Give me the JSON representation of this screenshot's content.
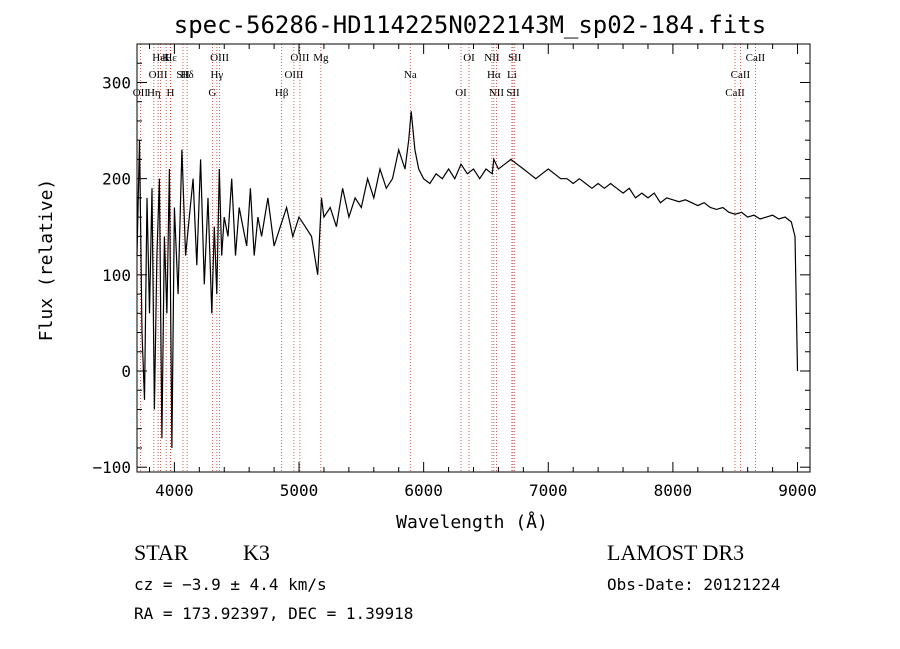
{
  "chart_data": {
    "type": "line",
    "title": "spec-56286-HD114225N022143M_sp02-184.fits",
    "xlabel": "Wavelength (Å)",
    "ylabel": "Flux (relative)",
    "xlim": [
      3700,
      9100
    ],
    "ylim": [
      -105,
      340
    ],
    "x_ticks": [
      4000,
      5000,
      6000,
      7000,
      8000,
      9000
    ],
    "x_tick_labels": [
      "4000",
      "5000",
      "6000",
      "7000",
      "8000",
      "9000"
    ],
    "y_ticks": [
      -100,
      0,
      100,
      200,
      300
    ],
    "y_tick_labels": [
      "−100",
      "0",
      "100",
      "200",
      "300"
    ],
    "grid": false,
    "series": [
      {
        "color": "#000000",
        "x": [
          3700,
          3720,
          3740,
          3760,
          3780,
          3800,
          3820,
          3840,
          3860,
          3880,
          3900,
          3920,
          3940,
          3960,
          3980,
          4000,
          4030,
          4060,
          4090,
          4120,
          4150,
          4180,
          4210,
          4240,
          4270,
          4300,
          4320,
          4340,
          4360,
          4380,
          4400,
          4430,
          4460,
          4490,
          4520,
          4550,
          4580,
          4610,
          4640,
          4670,
          4700,
          4750,
          4800,
          4850,
          4900,
          4950,
          5000,
          5050,
          5100,
          5150,
          5180,
          5200,
          5250,
          5300,
          5350,
          5400,
          5450,
          5500,
          5550,
          5600,
          5650,
          5700,
          5750,
          5800,
          5850,
          5880,
          5900,
          5930,
          5960,
          6000,
          6050,
          6100,
          6150,
          6200,
          6250,
          6300,
          6350,
          6400,
          6450,
          6500,
          6550,
          6563,
          6600,
          6650,
          6700,
          6750,
          6800,
          6850,
          6900,
          6950,
          7000,
          7050,
          7100,
          7150,
          7200,
          7250,
          7300,
          7350,
          7400,
          7450,
          7500,
          7550,
          7600,
          7650,
          7700,
          7750,
          7800,
          7850,
          7900,
          7950,
          8000,
          8050,
          8100,
          8150,
          8200,
          8250,
          8300,
          8350,
          8400,
          8450,
          8500,
          8550,
          8600,
          8650,
          8700,
          8750,
          8800,
          8850,
          8900,
          8950,
          8980,
          9000
        ],
        "y": [
          120,
          240,
          40,
          -30,
          180,
          60,
          190,
          -40,
          120,
          200,
          -70,
          140,
          60,
          210,
          -80,
          170,
          80,
          230,
          120,
          160,
          200,
          110,
          220,
          90,
          180,
          60,
          150,
          80,
          210,
          120,
          160,
          140,
          200,
          120,
          170,
          150,
          130,
          190,
          120,
          160,
          140,
          180,
          130,
          150,
          170,
          140,
          160,
          150,
          140,
          100,
          180,
          160,
          170,
          150,
          190,
          160,
          180,
          170,
          200,
          180,
          210,
          190,
          200,
          230,
          210,
          240,
          270,
          230,
          210,
          200,
          195,
          205,
          200,
          210,
          200,
          215,
          205,
          210,
          200,
          210,
          205,
          220,
          210,
          215,
          220,
          215,
          210,
          205,
          200,
          205,
          210,
          205,
          200,
          200,
          195,
          200,
          195,
          190,
          195,
          190,
          195,
          190,
          185,
          190,
          180,
          185,
          180,
          185,
          175,
          180,
          178,
          176,
          178,
          175,
          172,
          175,
          170,
          168,
          170,
          165,
          163,
          165,
          160,
          162,
          158,
          160,
          162,
          158,
          160,
          155,
          140,
          0
        ]
      }
    ],
    "lines": [
      {
        "label": "Hε",
        "wave": 3970
      },
      {
        "label": "Hδ",
        "wave": 4102
      },
      {
        "label": "OII",
        "wave": 3727
      },
      {
        "label": "HeI",
        "wave": 3889
      },
      {
        "label": "OIII",
        "wave": 3869
      },
      {
        "label": "Hη",
        "wave": 3835
      },
      {
        "label": "K",
        "wave": 3934
      },
      {
        "label": "SII",
        "wave": 4069
      },
      {
        "label": "H",
        "wave": 3969
      },
      {
        "label": "OIII",
        "wave": 4363
      },
      {
        "label": "Hγ",
        "wave": 4341
      },
      {
        "label": "G",
        "wave": 4305
      },
      {
        "label": "OIII",
        "wave": 5007
      },
      {
        "label": "OIII",
        "wave": 4959
      },
      {
        "label": "Hβ",
        "wave": 4861
      },
      {
        "label": "Mg",
        "wave": 5175
      },
      {
        "label": "Na",
        "wave": 5893
      },
      {
        "label": "OI",
        "wave": 6300
      },
      {
        "label": "OI",
        "wave": 6364
      },
      {
        "label": "Hα",
        "wave": 6563
      },
      {
        "label": "SII",
        "wave": 6717
      },
      {
        "label": "NII",
        "wave": 6548
      },
      {
        "label": "Li",
        "wave": 6708
      },
      {
        "label": "NII",
        "wave": 6584
      },
      {
        "label": "SII",
        "wave": 6731
      },
      {
        "label": "CaII",
        "wave": 8542
      },
      {
        "label": "CaII",
        "wave": 8498
      },
      {
        "label": "CaII",
        "wave": 8662
      }
    ]
  },
  "info": {
    "object_class": "STAR",
    "subclass": "K3",
    "survey": "LAMOST DR3",
    "cz": "cz = −3.9 ± 4.4 km/s",
    "obs_date": "Obs-Date: 20121224",
    "coords": "RA = 173.92397, DEC =    1.39918"
  },
  "colors": {
    "line_marker": "#c0392b",
    "spectrum": "#000000",
    "axes": "#000000"
  }
}
